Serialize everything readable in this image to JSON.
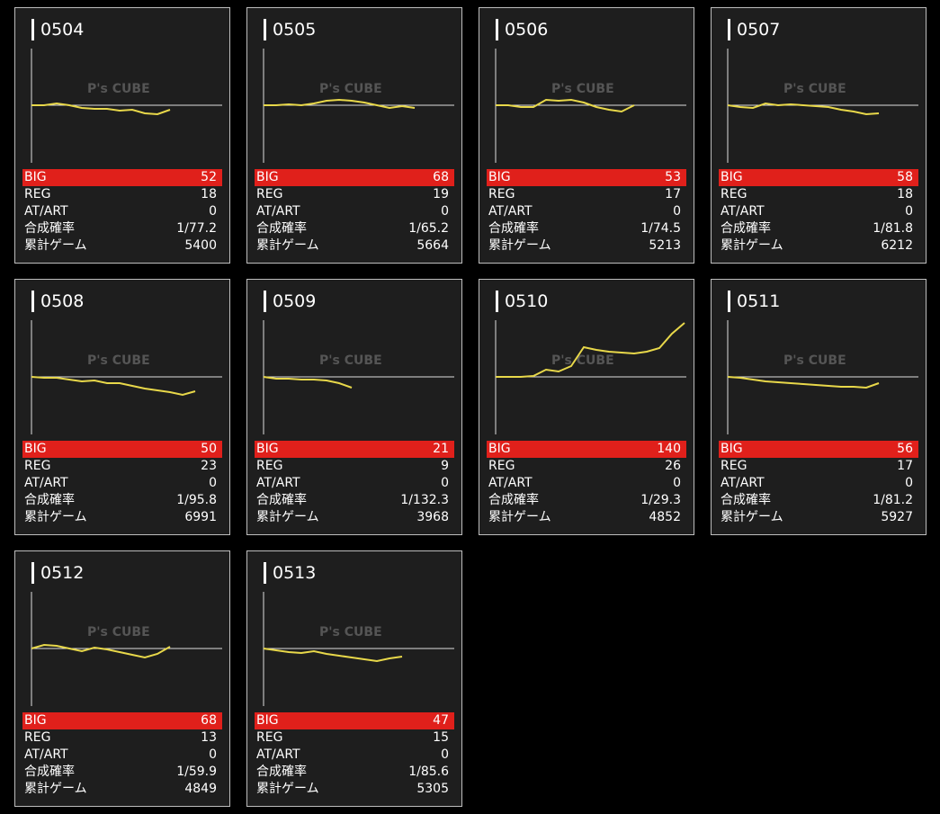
{
  "labels": {
    "big": "BIG",
    "reg": "REG",
    "at_art": "AT/ART",
    "prob": "合成確率",
    "games": "累計ゲーム"
  },
  "watermark": "P's CUBE",
  "machines": [
    {
      "id": "0504",
      "big": 52,
      "reg": 18,
      "at_art": 0,
      "prob": "1/77.2",
      "games": 5400,
      "graph": [
        0,
        0,
        2,
        0,
        -3,
        -4,
        -4,
        -6,
        -5,
        -9,
        -10,
        -5
      ]
    },
    {
      "id": "0505",
      "big": 68,
      "reg": 19,
      "at_art": 0,
      "prob": "1/65.2",
      "games": 5664,
      "graph": [
        0,
        0,
        1,
        0,
        2,
        5,
        6,
        5,
        3,
        0,
        -3,
        -1,
        -3
      ]
    },
    {
      "id": "0506",
      "big": 53,
      "reg": 17,
      "at_art": 0,
      "prob": "1/74.5",
      "games": 5213,
      "graph": [
        0,
        0,
        -2,
        -2,
        6,
        5,
        6,
        3,
        -2,
        -5,
        -7,
        0
      ]
    },
    {
      "id": "0507",
      "big": 58,
      "reg": 18,
      "at_art": 0,
      "prob": "1/81.8",
      "games": 6212,
      "graph": [
        0,
        -2,
        -3,
        2,
        0,
        1,
        0,
        -1,
        -2,
        -5,
        -7,
        -10,
        -9
      ]
    },
    {
      "id": "0508",
      "big": 50,
      "reg": 23,
      "at_art": 0,
      "prob": "1/95.8",
      "games": 6991,
      "graph": [
        0,
        -1,
        -1,
        -3,
        -5,
        -4,
        -7,
        -7,
        -10,
        -13,
        -15,
        -17,
        -20,
        -16
      ]
    },
    {
      "id": "0509",
      "big": 21,
      "reg": 9,
      "at_art": 0,
      "prob": "1/132.3",
      "games": 3968,
      "graph": [
        0,
        -2,
        -2,
        -3,
        -3,
        -4,
        -7,
        -12
      ]
    },
    {
      "id": "0510",
      "big": 140,
      "reg": 26,
      "at_art": 0,
      "prob": "1/29.3",
      "games": 4852,
      "graph": [
        0,
        0,
        0,
        1,
        8,
        6,
        12,
        33,
        30,
        28,
        27,
        26,
        28,
        32,
        48,
        60
      ]
    },
    {
      "id": "0511",
      "big": 56,
      "reg": 17,
      "at_art": 0,
      "prob": "1/81.2",
      "games": 5927,
      "graph": [
        0,
        -1,
        -3,
        -5,
        -6,
        -7,
        -8,
        -9,
        -10,
        -11,
        -11,
        -12,
        -7
      ]
    },
    {
      "id": "0512",
      "big": 68,
      "reg": 13,
      "at_art": 0,
      "prob": "1/59.9",
      "games": 4849,
      "graph": [
        0,
        4,
        3,
        0,
        -3,
        1,
        -1,
        -4,
        -7,
        -10,
        -6,
        2
      ]
    },
    {
      "id": "0513",
      "big": 47,
      "reg": 15,
      "at_art": 0,
      "prob": "1/85.6",
      "games": 5305,
      "graph": [
        0,
        -2,
        -4,
        -5,
        -3,
        -6,
        -8,
        -10,
        -12,
        -14,
        -11,
        -9
      ]
    }
  ]
}
